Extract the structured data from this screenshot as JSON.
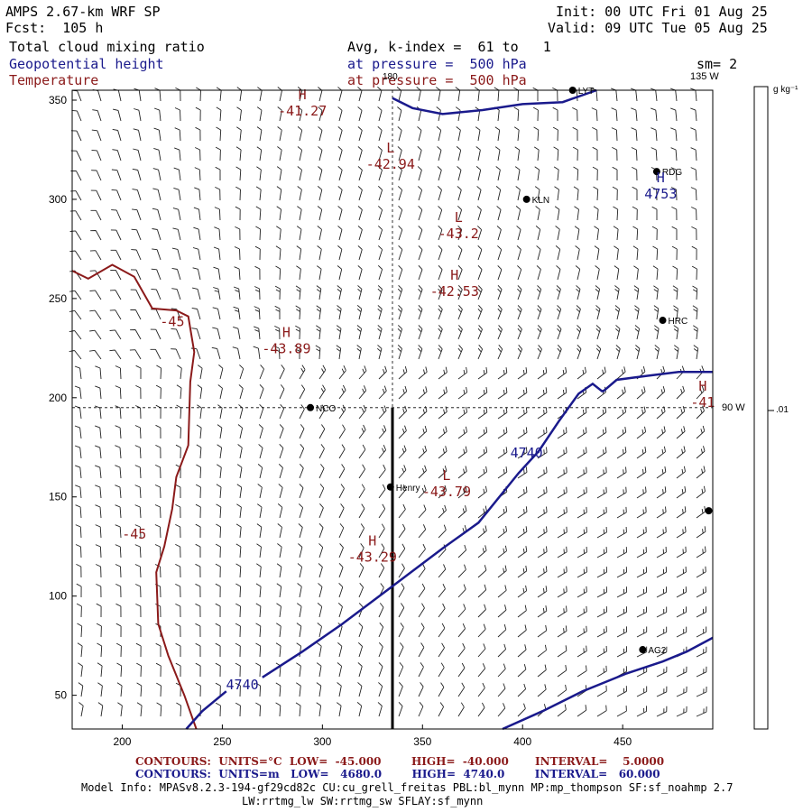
{
  "header": {
    "model": "AMPS 2.67-km WRF SP",
    "forecast": "Fcst:  105 h",
    "init": "Init: 00 UTC Fri 01 Aug 25",
    "valid": "Valid: 09 UTC Tue 05 Aug 25",
    "field1": "Total cloud mixing ratio",
    "field2": "Geopotential height",
    "field3": "Temperature",
    "avg": "Avg, k-index =  61 to   1",
    "pressure1": "at pressure =  500 hPa",
    "pressure2": "at pressure =  500 hPa",
    "smoothing": "sm= 2",
    "lon_top": "180",
    "lon_right_top": "135 W",
    "lon_right_mid": "90 W"
  },
  "colorbar": {
    "unit": "g kg⁻¹",
    "tick_label": ".01"
  },
  "stations": [
    {
      "name": "LYT",
      "x": 425,
      "y": 355
    },
    {
      "name": "RDG",
      "x": 467,
      "y": 314
    },
    {
      "name": "KLN",
      "x": 402,
      "y": 300
    },
    {
      "name": "HRC",
      "x": 470,
      "y": 239
    },
    {
      "name": "NCO",
      "x": 294,
      "y": 195
    },
    {
      "name": "Henry",
      "x": 334,
      "y": 155
    },
    {
      "name": "AG2",
      "x": 460,
      "y": 73
    },
    {
      "name": "",
      "x": 493,
      "y": 143
    }
  ],
  "extrema": [
    {
      "kind": "H",
      "value": "-41.27",
      "x": 290,
      "y": 346,
      "color": "red"
    },
    {
      "kind": "L",
      "value": "-42.94",
      "x": 334,
      "y": 319,
      "color": "red"
    },
    {
      "kind": "L",
      "value": "-43.2",
      "x": 368,
      "y": 284,
      "color": "red"
    },
    {
      "kind": "H",
      "value": "-42.53",
      "x": 366,
      "y": 255,
      "color": "red"
    },
    {
      "kind": "H",
      "value": "-43.89",
      "x": 282,
      "y": 226,
      "color": "red"
    },
    {
      "kind": "H",
      "value": "-41",
      "x": 490,
      "y": 199,
      "color": "red"
    },
    {
      "kind": "L",
      "value": "-43.79",
      "x": 362,
      "y": 154,
      "color": "red"
    },
    {
      "kind": "H",
      "value": "-43.29",
      "x": 325,
      "y": 121,
      "color": "red"
    },
    {
      "kind": "H",
      "value": "4753",
      "x": 469,
      "y": 304,
      "color": "blue"
    }
  ],
  "contour_labels": [
    {
      "value": "-45",
      "x": 225,
      "y": 236,
      "color": "red"
    },
    {
      "value": "-45",
      "x": 206,
      "y": 129,
      "color": "red"
    },
    {
      "value": "4740",
      "x": 402,
      "y": 170,
      "color": "blue"
    },
    {
      "value": "4740",
      "x": 260,
      "y": 53,
      "color": "blue"
    }
  ],
  "chart_data": {
    "type": "contour",
    "xlim": [
      175,
      495
    ],
    "ylim": [
      33,
      355
    ],
    "xticks": [
      200,
      250,
      300,
      350,
      400,
      450
    ],
    "yticks": [
      50,
      100,
      150,
      200,
      250,
      300,
      350
    ],
    "temperature_contours_degC": [
      {
        "level": -45,
        "points": [
          [
            175,
            264
          ],
          [
            183,
            260
          ],
          [
            195,
            267
          ],
          [
            206,
            261
          ],
          [
            215,
            245
          ],
          [
            227,
            244
          ],
          [
            233,
            241
          ],
          [
            236,
            223
          ],
          [
            234,
            208
          ],
          [
            233,
            176
          ],
          [
            227,
            160
          ],
          [
            225,
            144
          ],
          [
            221,
            125
          ],
          [
            217,
            112
          ],
          [
            218,
            86
          ],
          [
            223,
            70
          ],
          [
            231,
            50
          ],
          [
            237,
            33
          ]
        ]
      }
    ],
    "height_contours_m": [
      {
        "level": 4740,
        "points": [
          [
            440,
            203
          ],
          [
            447,
            209
          ],
          [
            462,
            211
          ],
          [
            478,
            213
          ],
          [
            495,
            213
          ]
        ]
      },
      {
        "level": 4740,
        "points": [
          [
            270,
            59
          ],
          [
            290,
            72
          ],
          [
            310,
            86
          ],
          [
            335,
            105
          ],
          [
            360,
            124
          ],
          [
            378,
            137
          ],
          [
            398,
            162
          ],
          [
            408,
            173
          ],
          [
            418,
            188
          ],
          [
            428,
            202
          ],
          [
            435,
            207
          ],
          [
            440,
            203
          ]
        ]
      },
      {
        "level": 4740,
        "points": [
          [
            232,
            33
          ],
          [
            240,
            42
          ],
          [
            252,
            52
          ]
        ]
      },
      {
        "level": 4740,
        "points": [
          [
            390,
            33
          ],
          [
            410,
            42
          ],
          [
            430,
            52
          ],
          [
            452,
            61
          ],
          [
            470,
            67
          ],
          [
            482,
            72
          ],
          [
            495,
            79
          ]
        ]
      },
      {
        "level": 4740,
        "points": [
          [
            335,
            351
          ],
          [
            345,
            346
          ],
          [
            360,
            343
          ],
          [
            380,
            345
          ],
          [
            400,
            348
          ],
          [
            420,
            349
          ],
          [
            437,
            355
          ]
        ]
      }
    ],
    "cross_section_x": 335,
    "cross_section_y": [
      33,
      195
    ],
    "reference_lines": {
      "x": 335,
      "y": 195
    }
  },
  "footer": {
    "red_line": "CONTOURS:  UNITS=°C  LOW=  -45.000        HIGH=  -40.000       INTERVAL=    5.0000",
    "blue_line": "CONTOURS:  UNITS=m   LOW=   4680.0        HIGH=  4740.0        INTERVAL=   60.000",
    "model_info": "Model Info: MPASv8.2.3-194-gf29cd82c CU:cu_grell_freitas PBL:bl_mynn MP:mp_thompson SF:sf_noahmp 2.7",
    "model_info2": "LW:rrtmg_lw SW:rrtmg_sw SFLAY:sf_mynn"
  },
  "colors": {
    "red": "#8b1a1a",
    "blue": "#1a1a8c",
    "black": "#000000"
  }
}
